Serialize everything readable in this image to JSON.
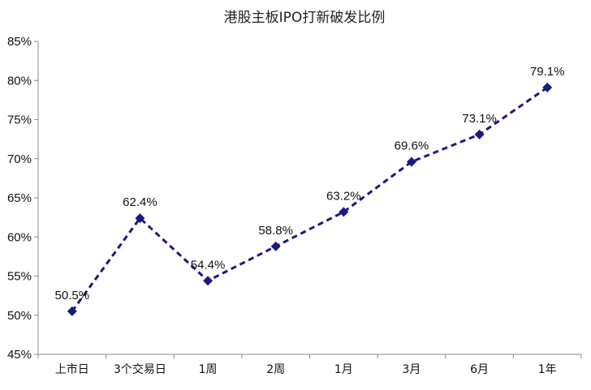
{
  "chart_data": {
    "type": "line",
    "title": "港股主板IPO打新破发比例",
    "xlabel": "",
    "ylabel": "",
    "categories": [
      "上市日",
      "3个交易日",
      "1周",
      "2周",
      "1月",
      "3月",
      "6月",
      "1年"
    ],
    "series": [
      {
        "values": [
          50.5,
          62.4,
          54.4,
          58.8,
          63.2,
          69.6,
          73.1,
          79.1
        ],
        "data_labels": [
          "50.5%",
          "62.4%",
          "54.4%",
          "58.8%",
          "63.2%",
          "69.6%",
          "73.1%",
          "79.1%"
        ]
      }
    ],
    "ylim": [
      45,
      85
    ],
    "y_ticks": [
      45,
      50,
      55,
      60,
      65,
      70,
      75,
      80,
      85
    ],
    "y_tick_labels": [
      "45%",
      "50%",
      "55%",
      "60%",
      "65%",
      "70%",
      "75%",
      "80%",
      "85%"
    ],
    "grid": false,
    "legend": "none",
    "line_style": "dashed",
    "marker": "diamond",
    "colors": {
      "series": "#1a1a80",
      "axis": "#8c8c8c",
      "text": "#111111"
    }
  }
}
